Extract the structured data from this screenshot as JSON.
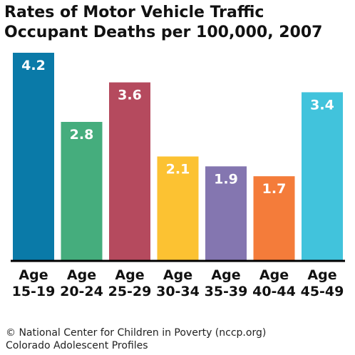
{
  "chart_data": {
    "type": "bar",
    "title": "Rates of Motor Vehicle Traffic Occupant Deaths per 100,000, 2007",
    "categories": [
      [
        "Age",
        "15-19"
      ],
      [
        "Age",
        "20-24"
      ],
      [
        "Age",
        "25-29"
      ],
      [
        "Age",
        "30-34"
      ],
      [
        "Age",
        "35-39"
      ],
      [
        "Age",
        "40-44"
      ],
      [
        "Age",
        "45-49"
      ]
    ],
    "values": [
      4.2,
      2.8,
      3.6,
      2.1,
      1.9,
      1.7,
      3.4
    ],
    "value_labels": [
      "4.2",
      "2.8",
      "3.6",
      "2.1",
      "1.9",
      "1.7",
      "3.4"
    ],
    "colors": [
      "#0a7aa8",
      "#45ad7d",
      "#b54a5e",
      "#fcc232",
      "#8476b0",
      "#f47c3a",
      "#41c3dc"
    ],
    "ylim": [
      0,
      4.2
    ],
    "grid": false,
    "legend": "none"
  },
  "footer": {
    "line1": "© National Center for Children in Poverty (nccp.org)",
    "line2": "Colorado Adolescent Profiles"
  }
}
